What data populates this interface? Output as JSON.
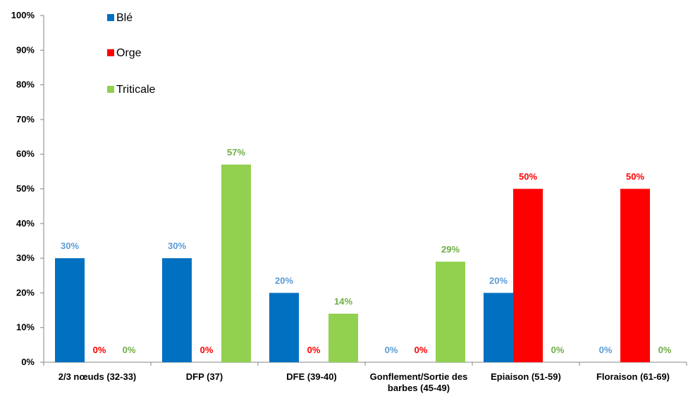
{
  "chart_data": {
    "type": "bar",
    "categories": [
      "2/3 nœuds (32-33)",
      "DFP (37)",
      "DFE (39-40)",
      "Gonflement/Sortie des barbes (45-49)",
      "Epiaison (51-59)",
      "Floraison (61-69)"
    ],
    "series": [
      {
        "name": "Blé",
        "color": "#0070c0",
        "label_color": "#5b9bd5",
        "values": [
          30,
          30,
          20,
          0,
          20,
          0
        ]
      },
      {
        "name": "Orge",
        "color": "#ff0000",
        "label_color": "#ff0000",
        "values": [
          0,
          0,
          0,
          0,
          50,
          50
        ]
      },
      {
        "name": "Triticale",
        "color": "#92d050",
        "label_color": "#70ad47",
        "values": [
          0,
          57,
          14,
          29,
          0,
          0
        ]
      }
    ],
    "data_labels": [
      [
        "30%",
        "30%",
        "20%",
        "0%",
        "20%",
        "0%"
      ],
      [
        "0%",
        "0%",
        "0%",
        "0%",
        "50%",
        "50%"
      ],
      [
        "0%",
        "57%",
        "14%",
        "29%",
        "0%",
        "0%"
      ]
    ],
    "y_ticks": [
      "0%",
      "10%",
      "20%",
      "30%",
      "40%",
      "50%",
      "60%",
      "70%",
      "80%",
      "90%",
      "100%"
    ],
    "ylim": [
      0,
      100
    ],
    "grid": false,
    "legend_position": "top-left",
    "title": "",
    "xlabel": "",
    "ylabel": ""
  }
}
